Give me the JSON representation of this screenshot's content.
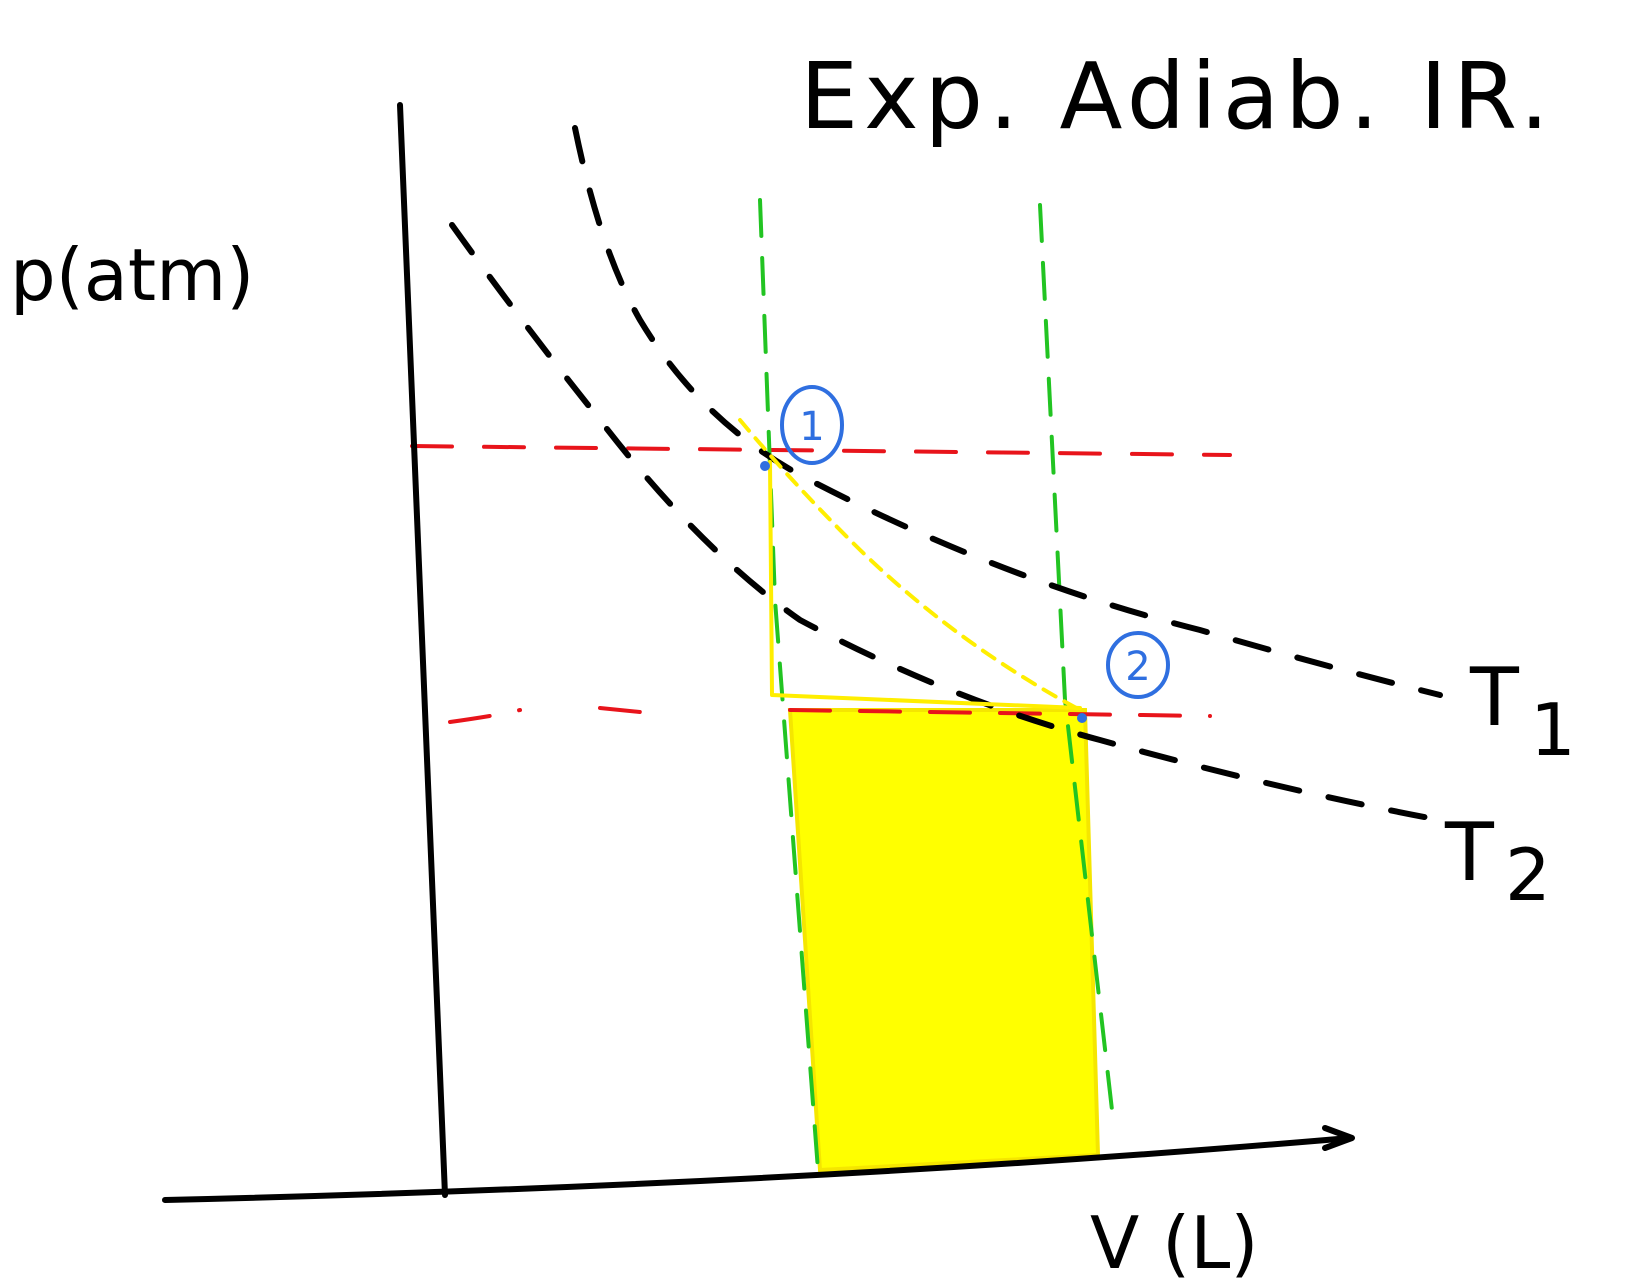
{
  "title": "Exp. Adiab. IR.",
  "axes": {
    "y_label": "p(atm)",
    "x_label": "V (L)"
  },
  "isotherms": [
    {
      "label": "T",
      "subscript": "1"
    },
    {
      "label": "T",
      "subscript": "2"
    }
  ],
  "states": [
    {
      "label": "1"
    },
    {
      "label": "2"
    }
  ],
  "colors": {
    "axes": "#000000",
    "isotherm": "#000000",
    "pressure_guides": "#e8141b",
    "volume_guides": "#22c422",
    "path": "#ffee00",
    "work_area": "#ffff00",
    "state_markers": "#2f6fe0"
  }
}
